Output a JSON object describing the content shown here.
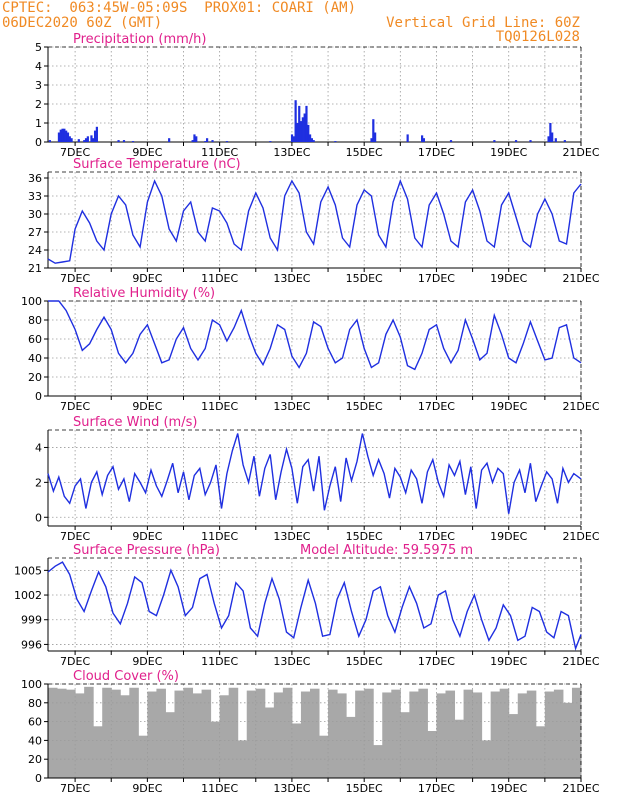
{
  "header": {
    "line1_left": "CPTEC:  063:45W-05:09S  PROX01: COARI (AM)",
    "line2_left": "06DEC2020 60Z (GMT)",
    "line2_right": "Vertical Grid Line: 60Z",
    "line3_right": "TQ0126L028"
  },
  "colors": {
    "header": "#f08a24",
    "title": "#e0208c",
    "series": "#1f2fe0",
    "bars": "#1f2fe0",
    "cloud": "#a8a8a8",
    "grid": "#9a9a9a"
  },
  "x_axis": {
    "day_start": 6.25,
    "day_end": 21,
    "tick_days": [
      7,
      9,
      11,
      13,
      15,
      17,
      19,
      21
    ],
    "tick_labels": [
      "7DEC",
      "9DEC",
      "11DEC",
      "13DEC",
      "15DEC",
      "17DEC",
      "19DEC",
      "21DEC"
    ],
    "minor_days": [
      7,
      8,
      9,
      10,
      11,
      12,
      13,
      14,
      15,
      16,
      17,
      18,
      19,
      20,
      21
    ]
  },
  "chart_data": [
    {
      "id": "precip",
      "type": "bar",
      "title": "Precipitation (mm/h)",
      "ylim": [
        0,
        5
      ],
      "yticks": [
        0,
        1,
        2,
        3,
        4,
        5
      ],
      "ytick_labels": [
        "0",
        "1",
        "2",
        "3",
        "4",
        "5"
      ],
      "x": [
        6.3,
        6.55,
        6.6,
        6.65,
        6.7,
        6.75,
        6.8,
        6.85,
        6.9,
        7.1,
        7.25,
        7.3,
        7.35,
        7.45,
        7.5,
        7.55,
        7.6,
        8.2,
        8.35,
        8.6,
        9.6,
        10.25,
        10.3,
        10.35,
        10.6,
        10.65,
        10.8,
        11.2,
        12.4,
        13.0,
        13.05,
        13.1,
        13.15,
        13.2,
        13.25,
        13.3,
        13.35,
        13.4,
        13.45,
        13.5,
        13.55,
        13.6,
        14.2,
        15.2,
        15.25,
        15.3,
        16.2,
        16.6,
        16.65,
        17.4,
        18.6,
        19.2,
        19.6,
        20.1,
        20.15,
        20.2,
        20.3,
        20.55
      ],
      "values": [
        0.1,
        0.5,
        0.65,
        0.7,
        0.7,
        0.6,
        0.5,
        0.3,
        0.2,
        0.15,
        0.1,
        0.2,
        0.3,
        0.35,
        0.2,
        0.6,
        0.8,
        0.1,
        0.1,
        0.05,
        0.2,
        0.1,
        0.4,
        0.3,
        0.05,
        0.2,
        0.1,
        0.05,
        0.05,
        0.4,
        0.3,
        2.2,
        1.0,
        1.9,
        1.1,
        1.3,
        1.5,
        1.9,
        0.9,
        0.4,
        0.2,
        0.1,
        0.05,
        0.2,
        1.2,
        0.5,
        0.4,
        0.35,
        0.2,
        0.1,
        0.1,
        0.1,
        0.1,
        0.3,
        1.0,
        0.5,
        0.2,
        0.1
      ]
    },
    {
      "id": "temp",
      "type": "line",
      "title": "Surface Temperature (nC)",
      "ylim": [
        21,
        37
      ],
      "yticks": [
        21,
        24,
        27,
        30,
        33,
        36
      ],
      "ytick_labels": [
        "21",
        "24",
        "27",
        "30",
        "33",
        "36"
      ],
      "x": [
        6.25,
        6.45,
        6.65,
        6.85,
        7.0,
        7.2,
        7.4,
        7.6,
        7.8,
        8.0,
        8.2,
        8.4,
        8.6,
        8.8,
        9.0,
        9.2,
        9.4,
        9.6,
        9.8,
        10.0,
        10.2,
        10.4,
        10.6,
        10.8,
        11.0,
        11.2,
        11.4,
        11.6,
        11.8,
        12.0,
        12.2,
        12.4,
        12.6,
        12.8,
        13.0,
        13.2,
        13.4,
        13.6,
        13.8,
        14.0,
        14.2,
        14.4,
        14.6,
        14.8,
        15.0,
        15.2,
        15.4,
        15.6,
        15.8,
        16.0,
        16.2,
        16.4,
        16.6,
        16.8,
        17.0,
        17.2,
        17.4,
        17.6,
        17.8,
        18.0,
        18.2,
        18.4,
        18.6,
        18.8,
        19.0,
        19.2,
        19.4,
        19.6,
        19.8,
        20.0,
        20.2,
        20.4,
        20.6,
        20.8,
        21.0
      ],
      "values": [
        22.5,
        21.8,
        22.0,
        22.2,
        27.5,
        30.5,
        28.5,
        25.5,
        24.0,
        30.0,
        33.0,
        31.5,
        26.5,
        24.5,
        32.0,
        35.5,
        33.0,
        27.5,
        25.5,
        30.5,
        32.0,
        27.0,
        25.5,
        31.0,
        30.5,
        28.5,
        25.0,
        24.0,
        30.5,
        33.5,
        31.0,
        26.0,
        24.0,
        33.0,
        35.5,
        33.5,
        27.0,
        25.0,
        32.0,
        34.5,
        31.5,
        26.0,
        24.5,
        31.5,
        34.0,
        33.0,
        26.5,
        24.5,
        32.0,
        35.5,
        32.5,
        26.0,
        24.5,
        31.5,
        33.5,
        30.0,
        25.5,
        24.5,
        32.0,
        34.0,
        30.5,
        25.5,
        24.5,
        31.5,
        33.5,
        29.5,
        25.5,
        24.5,
        30.0,
        32.5,
        30.0,
        25.5,
        25.0,
        33.5,
        35.0
      ]
    },
    {
      "id": "rh",
      "type": "line",
      "title": "Relative Humidity (%)",
      "ylim": [
        0,
        100
      ],
      "yticks": [
        0,
        20,
        40,
        60,
        80,
        100
      ],
      "ytick_labels": [
        "0",
        "20",
        "40",
        "60",
        "80",
        "100"
      ],
      "x": [
        6.25,
        6.55,
        6.75,
        7.0,
        7.2,
        7.4,
        7.6,
        7.8,
        8.0,
        8.2,
        8.4,
        8.6,
        8.8,
        9.0,
        9.2,
        9.4,
        9.6,
        9.8,
        10.0,
        10.2,
        10.4,
        10.6,
        10.8,
        11.0,
        11.2,
        11.4,
        11.6,
        11.8,
        12.0,
        12.2,
        12.4,
        12.6,
        12.8,
        13.0,
        13.2,
        13.4,
        13.6,
        13.8,
        14.0,
        14.2,
        14.4,
        14.6,
        14.8,
        15.0,
        15.2,
        15.4,
        15.6,
        15.8,
        16.0,
        16.2,
        16.4,
        16.6,
        16.8,
        17.0,
        17.2,
        17.4,
        17.6,
        17.8,
        18.0,
        18.2,
        18.4,
        18.6,
        18.8,
        19.0,
        19.2,
        19.4,
        19.6,
        19.8,
        20.0,
        20.2,
        20.4,
        20.6,
        20.8,
        21.0
      ],
      "values": [
        100,
        100,
        90,
        70,
        48,
        55,
        70,
        83,
        70,
        45,
        35,
        45,
        65,
        75,
        55,
        35,
        38,
        60,
        72,
        50,
        38,
        50,
        80,
        75,
        58,
        72,
        90,
        65,
        45,
        33,
        50,
        75,
        70,
        42,
        30,
        45,
        78,
        73,
        50,
        35,
        40,
        70,
        80,
        50,
        30,
        35,
        65,
        80,
        62,
        32,
        28,
        45,
        70,
        75,
        50,
        35,
        48,
        80,
        60,
        38,
        45,
        85,
        65,
        40,
        35,
        55,
        78,
        58,
        38,
        40,
        72,
        75,
        40,
        35
      ]
    },
    {
      "id": "wind",
      "type": "line",
      "title": "Surface Wind (m/s)",
      "ylim": [
        -0.5,
        5
      ],
      "yticks": [
        0,
        2,
        4
      ],
      "ytick_labels": [
        "0",
        "2",
        "4"
      ],
      "x": [
        6.25,
        6.4,
        6.55,
        6.7,
        6.85,
        7.0,
        7.15,
        7.3,
        7.45,
        7.6,
        7.75,
        7.9,
        8.05,
        8.2,
        8.35,
        8.5,
        8.65,
        8.8,
        8.95,
        9.1,
        9.25,
        9.4,
        9.55,
        9.7,
        9.85,
        10.0,
        10.15,
        10.3,
        10.45,
        10.6,
        10.75,
        10.9,
        11.05,
        11.2,
        11.35,
        11.5,
        11.65,
        11.8,
        11.95,
        12.1,
        12.25,
        12.4,
        12.55,
        12.7,
        12.85,
        13.0,
        13.15,
        13.3,
        13.45,
        13.6,
        13.75,
        13.9,
        14.05,
        14.2,
        14.35,
        14.5,
        14.65,
        14.8,
        14.95,
        15.1,
        15.25,
        15.4,
        15.55,
        15.7,
        15.85,
        16.0,
        16.15,
        16.3,
        16.45,
        16.6,
        16.75,
        16.9,
        17.05,
        17.2,
        17.35,
        17.5,
        17.65,
        17.8,
        17.95,
        18.1,
        18.25,
        18.4,
        18.55,
        18.7,
        18.85,
        19.0,
        19.15,
        19.3,
        19.45,
        19.6,
        19.75,
        19.9,
        20.05,
        20.2,
        20.35,
        20.5,
        20.65,
        20.8,
        21.0
      ],
      "values": [
        2.5,
        1.5,
        2.3,
        1.2,
        0.8,
        1.8,
        2.2,
        0.5,
        2.0,
        2.6,
        1.3,
        2.4,
        2.9,
        1.6,
        2.2,
        0.9,
        2.5,
        2.0,
        1.4,
        2.7,
        1.8,
        1.2,
        2.1,
        3.1,
        1.4,
        2.6,
        1.0,
        2.4,
        2.8,
        1.3,
        2.0,
        3.0,
        0.5,
        2.5,
        3.8,
        4.8,
        3.0,
        2.0,
        3.5,
        1.2,
        2.8,
        3.6,
        1.0,
        2.6,
        3.9,
        2.8,
        0.8,
        2.9,
        3.3,
        1.5,
        3.5,
        0.4,
        1.8,
        2.9,
        0.9,
        3.4,
        2.1,
        3.2,
        4.8,
        3.5,
        2.4,
        3.3,
        2.5,
        1.1,
        2.8,
        2.3,
        1.4,
        2.7,
        2.2,
        0.8,
        2.6,
        3.3,
        2.0,
        1.2,
        3.0,
        2.4,
        3.2,
        1.3,
        2.9,
        0.5,
        2.7,
        3.1,
        2.0,
        2.8,
        2.5,
        0.2,
        2.0,
        2.7,
        1.4,
        3.1,
        0.9,
        1.8,
        2.6,
        2.2,
        0.8,
        2.8,
        2.0,
        2.5,
        2.2
      ]
    },
    {
      "id": "pressure",
      "type": "line",
      "title": "Surface Pressure (hPa)",
      "annotation": "Model Altitude: 59.5975 m",
      "ylim": [
        995.2,
        1006.5
      ],
      "yticks": [
        996,
        999,
        1002,
        1005
      ],
      "ytick_labels": [
        "996",
        "999",
        "1002",
        "1005"
      ],
      "x": [
        6.25,
        6.45,
        6.65,
        6.85,
        7.05,
        7.25,
        7.45,
        7.65,
        7.85,
        8.05,
        8.25,
        8.45,
        8.65,
        8.85,
        9.05,
        9.25,
        9.45,
        9.65,
        9.85,
        10.05,
        10.25,
        10.45,
        10.65,
        10.85,
        11.05,
        11.25,
        11.45,
        11.65,
        11.85,
        12.05,
        12.25,
        12.45,
        12.65,
        12.85,
        13.05,
        13.25,
        13.45,
        13.65,
        13.85,
        14.05,
        14.25,
        14.45,
        14.65,
        14.85,
        15.05,
        15.25,
        15.45,
        15.65,
        15.85,
        16.05,
        16.25,
        16.45,
        16.65,
        16.85,
        17.05,
        17.25,
        17.45,
        17.65,
        17.85,
        18.05,
        18.25,
        18.45,
        18.65,
        18.85,
        19.05,
        19.25,
        19.45,
        19.65,
        19.85,
        20.05,
        20.25,
        20.45,
        20.65,
        20.85,
        21.0
      ],
      "values": [
        1004.8,
        1005.5,
        1006.0,
        1004.5,
        1001.5,
        1000.0,
        1002.5,
        1004.8,
        1003.0,
        999.8,
        998.5,
        1001.0,
        1004.2,
        1003.5,
        1000.0,
        999.5,
        1002.0,
        1005.0,
        1003.0,
        999.5,
        1000.5,
        1004.0,
        1004.5,
        1001.0,
        998.0,
        999.5,
        1003.5,
        1002.5,
        998.0,
        997.0,
        1001.0,
        1004.0,
        1001.5,
        997.5,
        996.8,
        1000.5,
        1003.8,
        1001.0,
        997.0,
        997.2,
        1001.5,
        1003.5,
        1000.0,
        997.0,
        999.0,
        1002.5,
        1003.0,
        999.5,
        997.5,
        1000.5,
        1003.0,
        1001.0,
        998.0,
        998.5,
        1002.0,
        1002.5,
        999.0,
        997.0,
        1000.0,
        1002.0,
        999.0,
        996.5,
        998.0,
        1000.8,
        999.5,
        996.5,
        997.0,
        1000.5,
        1000.0,
        997.5,
        996.8,
        1000.0,
        999.5,
        995.5,
        997.2
      ]
    },
    {
      "id": "cloud",
      "type": "bar",
      "title": "Cloud Cover (%)",
      "ylim": [
        0,
        100
      ],
      "yticks": [
        0,
        20,
        40,
        60,
        80,
        100
      ],
      "ytick_labels": [
        "0",
        "20",
        "40",
        "60",
        "80",
        "100"
      ],
      "x": [
        6.25,
        6.5,
        6.75,
        7.0,
        7.25,
        7.5,
        7.75,
        8.0,
        8.25,
        8.5,
        8.75,
        9.0,
        9.25,
        9.5,
        9.75,
        10.0,
        10.25,
        10.5,
        10.75,
        11.0,
        11.25,
        11.5,
        11.75,
        12.0,
        12.25,
        12.5,
        12.75,
        13.0,
        13.25,
        13.5,
        13.75,
        14.0,
        14.25,
        14.5,
        14.75,
        15.0,
        15.25,
        15.5,
        15.75,
        16.0,
        16.25,
        16.5,
        16.75,
        17.0,
        17.25,
        17.5,
        17.75,
        18.0,
        18.25,
        18.5,
        18.75,
        19.0,
        19.25,
        19.5,
        19.75,
        20.0,
        20.25,
        20.5,
        20.75
      ],
      "values": [
        96,
        95,
        94,
        90,
        97,
        55,
        96,
        94,
        88,
        96,
        45,
        92,
        95,
        70,
        93,
        96,
        90,
        94,
        60,
        88,
        96,
        40,
        93,
        95,
        75,
        91,
        96,
        58,
        92,
        95,
        45,
        94,
        90,
        65,
        93,
        95,
        35,
        91,
        94,
        70,
        92,
        95,
        50,
        90,
        93,
        62,
        94,
        91,
        40,
        92,
        95,
        68,
        90,
        93,
        55,
        92,
        94,
        80,
        96
      ]
    }
  ]
}
